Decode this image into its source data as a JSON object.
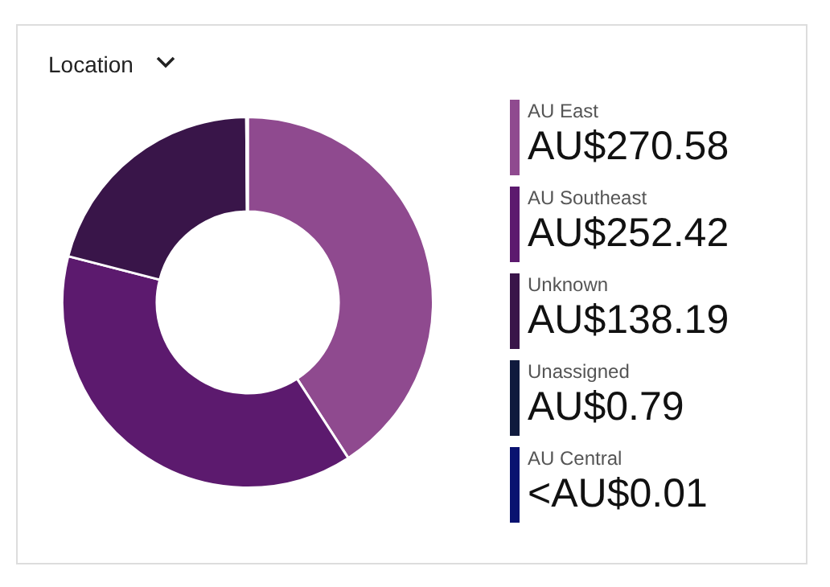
{
  "chart_data": {
    "type": "donut",
    "title": "Location",
    "legend": "right",
    "categories": [
      "AU East",
      "AU Southeast",
      "Unknown",
      "Unassigned",
      "AU Central"
    ],
    "values": [
      270.58,
      252.42,
      138.19,
      0.79,
      0
    ],
    "value_labels": [
      "AU$270.58",
      "AU$252.42",
      "AU$138.19",
      "AU$0.79",
      "<AU$0.01"
    ],
    "colors": [
      "#8f4a8f",
      "#5c1a6e",
      "#391549",
      "#0f1a3d",
      "#0a1270"
    ]
  }
}
